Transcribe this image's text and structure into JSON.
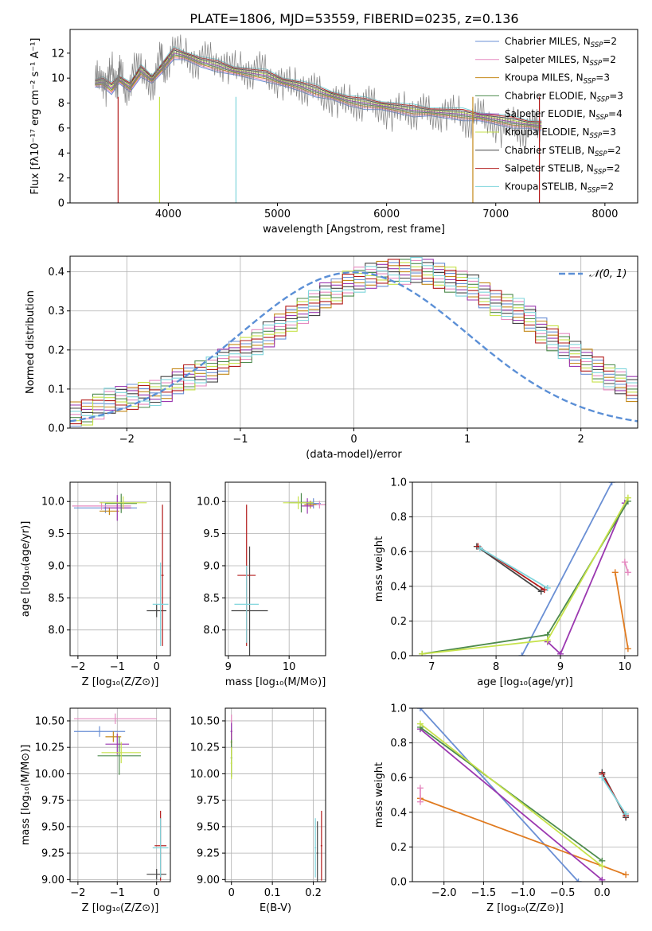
{
  "figure_title": "PLATE=1806, MJD=53559, FIBERID=0235, z=0.136",
  "colors": {
    "chabrier_miles": "#6a8fd4",
    "salpeter_miles": "#e58ac0",
    "kroupa_miles": "#c4891a",
    "chabrier_elodie": "#4e8b4e",
    "salpeter_elodie": "#9b38b0",
    "kroupa_elodie": "#c6e24a",
    "chabrier_stelib": "#444444",
    "salpeter_stelib": "#b31b1b",
    "kroupa_stelib": "#7fd5dc",
    "data": "#808080",
    "normal_curve": "#5b8fd6",
    "weights_blue": "#6a8fd4",
    "weights_orange": "#e07b20",
    "weights_purple": "#9b38b0",
    "weights_green": "#4e8b4e",
    "weights_lime": "#c6e24a",
    "weights_dark": "#444444",
    "weights_red": "#b31b1b",
    "weights_cyan": "#7fd5dc",
    "weights_pink": "#e58ac0"
  },
  "chart_data": [
    {
      "id": "spectrum",
      "type": "line",
      "xlabel": "wavelength [Angstrom, rest frame]",
      "ylabel": "Flux [fλ10⁻¹⁷ erg cm⁻² s⁻¹ A⁻¹]",
      "xlim": [
        3100,
        8300
      ],
      "ylim": [
        0,
        13.9
      ],
      "xticks": [
        4000,
        5000,
        6000,
        7000,
        8000
      ],
      "yticks": [
        0,
        2,
        4,
        6,
        8,
        10,
        12
      ],
      "grid": false,
      "legend_position": "top-right",
      "data_series": {
        "x": [
          3330,
          3380,
          3430,
          3480,
          3530,
          3560,
          3620,
          3700,
          3780,
          3860,
          3930,
          3970,
          4050,
          4150,
          4250,
          4350,
          4450,
          4550,
          4650,
          4750,
          4850,
          4950,
          5050,
          5150,
          5250,
          5350,
          5450,
          5550,
          5650,
          5750,
          5850,
          5950,
          6050,
          6150,
          6250,
          6350,
          6450,
          6550,
          6650,
          6750,
          6850,
          6950,
          7050,
          7150,
          7250,
          7350,
          7420
        ],
        "y": [
          9.8,
          10.4,
          9.1,
          10.9,
          9.5,
          10.6,
          8.7,
          11.2,
          10.2,
          9.4,
          11.8,
          10.5,
          12.4,
          11.9,
          11.2,
          11.6,
          11.3,
          10.9,
          10.8,
          10.4,
          10.8,
          10.0,
          9.6,
          9.5,
          9.2,
          9.0,
          8.4,
          8.2,
          8.1,
          7.9,
          8.0,
          7.5,
          7.1,
          7.6,
          7.2,
          7.4,
          6.9,
          7.2,
          7.3,
          6.4,
          7.1,
          6.6,
          5.8,
          6.4,
          5.7,
          6.2,
          6.0
        ]
      },
      "model_series_base": {
        "x": [
          3330,
          3400,
          3480,
          3550,
          3650,
          3750,
          3850,
          3950,
          4050,
          4150,
          4300,
          4450,
          4600,
          4750,
          4900,
          5050,
          5200,
          5350,
          5500,
          5650,
          5800,
          5950,
          6100,
          6250,
          6400,
          6550,
          6700,
          6850,
          7000,
          7150,
          7300,
          7420
        ],
        "y": [
          9.6,
          9.7,
          9.2,
          9.9,
          9.3,
          10.6,
          9.9,
          10.9,
          12.0,
          11.8,
          11.3,
          11.0,
          10.6,
          10.4,
          10.2,
          9.7,
          9.4,
          9.0,
          8.6,
          8.2,
          8.0,
          7.8,
          7.6,
          7.4,
          7.3,
          7.2,
          7.1,
          6.9,
          6.7,
          6.5,
          6.3,
          6.2
        ]
      },
      "series": [
        {
          "name": "Chabrier MILES, N",
          "sub": "SSP",
          "suffix": "=2",
          "color_key": "chabrier_miles"
        },
        {
          "name": "Salpeter MILES, N",
          "sub": "SSP",
          "suffix": "=2",
          "color_key": "salpeter_miles"
        },
        {
          "name": "Kroupa MILES, N",
          "sub": "SSP",
          "suffix": "=3",
          "color_key": "kroupa_miles"
        },
        {
          "name": "Chabrier ELODIE, N",
          "sub": "SSP",
          "suffix": "=3",
          "color_key": "chabrier_elodie"
        },
        {
          "name": "Salpeter ELODIE, N",
          "sub": "SSP",
          "suffix": "=4",
          "color_key": "salpeter_elodie"
        },
        {
          "name": "Kroupa ELODIE, N",
          "sub": "SSP",
          "suffix": "=3",
          "color_key": "kroupa_elodie"
        },
        {
          "name": "Chabrier STELIB, N",
          "sub": "SSP",
          "suffix": "=2",
          "color_key": "chabrier_stelib"
        },
        {
          "name": "Salpeter STELIB, N",
          "sub": "SSP",
          "suffix": "=2",
          "color_key": "salpeter_stelib"
        },
        {
          "name": "Kroupa STELIB, N",
          "sub": "SSP",
          "suffix": "=2",
          "color_key": "kroupa_stelib"
        }
      ]
    },
    {
      "id": "residuals",
      "type": "bar",
      "xlabel": "(data-model)/error",
      "ylabel": "Normed distribution",
      "xlim": [
        -2.5,
        2.5
      ],
      "ylim": [
        0,
        0.44
      ],
      "xticks": [
        -2,
        -1,
        0,
        1,
        2
      ],
      "yticks": [
        0.0,
        0.1,
        0.2,
        0.3,
        0.4
      ],
      "grid": true,
      "legend_position": "top-right",
      "legend_label": "𝒩(0, 1)",
      "bin_width": 0.1,
      "bin_start": -2.5,
      "base_histogram": [
        0.035,
        0.04,
        0.055,
        0.07,
        0.075,
        0.08,
        0.085,
        0.09,
        0.1,
        0.12,
        0.13,
        0.14,
        0.15,
        0.17,
        0.19,
        0.2,
        0.22,
        0.24,
        0.26,
        0.28,
        0.3,
        0.32,
        0.34,
        0.35,
        0.37,
        0.38,
        0.39,
        0.395,
        0.4,
        0.4,
        0.405,
        0.4,
        0.39,
        0.38,
        0.37,
        0.36,
        0.34,
        0.32,
        0.31,
        0.3,
        0.28,
        0.25,
        0.23,
        0.21,
        0.19,
        0.17,
        0.15,
        0.13,
        0.12,
        0.1
      ],
      "series_colors": [
        "chabrier_miles",
        "salpeter_miles",
        "kroupa_miles",
        "chabrier_elodie",
        "salpeter_elodie",
        "kroupa_elodie",
        "chabrier_stelib",
        "salpeter_stelib",
        "kroupa_stelib"
      ]
    },
    {
      "id": "age_vs_Z",
      "type": "scatter",
      "xlabel": "Z [log₁₀(Z/Z⊙)]",
      "ylabel": "age  [log₁₀(age/yr)]",
      "xlim": [
        -2.2,
        0.35
      ],
      "ylim": [
        7.6,
        10.3
      ],
      "xticks": [
        -2,
        -1,
        0
      ],
      "yticks": [
        8.0,
        8.5,
        9.0,
        9.5,
        10.0
      ],
      "grid": true,
      "points": [
        {
          "x": -1.3,
          "y": 9.9,
          "xerr": 0.8,
          "yerr": 0.08,
          "color_key": "chabrier_miles"
        },
        {
          "x": -1.4,
          "y": 9.93,
          "xerr": 0.75,
          "yerr": 0.06,
          "color_key": "salpeter_miles"
        },
        {
          "x": -1.2,
          "y": 9.85,
          "xerr": 0.25,
          "yerr": 0.06,
          "color_key": "kroupa_miles"
        },
        {
          "x": -0.9,
          "y": 9.97,
          "xerr": 0.4,
          "yerr": 0.15,
          "color_key": "chabrier_elodie"
        },
        {
          "x": -1.0,
          "y": 9.9,
          "xerr": 0.35,
          "yerr": 0.2,
          "color_key": "salpeter_elodie"
        },
        {
          "x": -0.85,
          "y": 9.98,
          "xerr": 0.6,
          "yerr": 0.1,
          "color_key": "kroupa_elodie"
        },
        {
          "x": 0.0,
          "y": 8.3,
          "xerr": 0.25,
          "yerr": 0.1,
          "color_key": "chabrier_stelib"
        },
        {
          "x": 0.15,
          "y": 8.85,
          "xerr": 0.03,
          "yerr": 1.1,
          "color_key": "salpeter_stelib"
        },
        {
          "x": 0.1,
          "y": 8.4,
          "xerr": 0.2,
          "yerr": 0.65,
          "color_key": "kroupa_stelib"
        }
      ]
    },
    {
      "id": "age_vs_mass",
      "type": "scatter",
      "xlabel": "mass [log₁₀(M/M⊙)]",
      "ylabel": "",
      "xlim": [
        8.95,
        10.6
      ],
      "ylim": [
        7.6,
        10.3
      ],
      "xticks": [
        9,
        10
      ],
      "yticks": [
        8.0,
        8.5,
        9.0,
        9.5,
        10.0
      ],
      "grid": true,
      "points": [
        {
          "x": 10.4,
          "y": 9.97,
          "xerr": 0.12,
          "yerr": 0.08,
          "color_key": "chabrier_miles"
        },
        {
          "x": 10.5,
          "y": 9.95,
          "xerr": 0.1,
          "yerr": 0.06,
          "color_key": "salpeter_miles"
        },
        {
          "x": 10.35,
          "y": 9.95,
          "xerr": 0.1,
          "yerr": 0.06,
          "color_key": "kroupa_miles"
        },
        {
          "x": 10.2,
          "y": 9.98,
          "xerr": 0.2,
          "yerr": 0.15,
          "color_key": "chabrier_elodie"
        },
        {
          "x": 10.3,
          "y": 9.93,
          "xerr": 0.1,
          "yerr": 0.12,
          "color_key": "salpeter_elodie"
        },
        {
          "x": 10.15,
          "y": 9.98,
          "xerr": 0.25,
          "yerr": 0.1,
          "color_key": "kroupa_elodie"
        },
        {
          "x": 9.35,
          "y": 8.3,
          "xerr": 0.3,
          "yerr": 1.0,
          "color_key": "chabrier_stelib"
        },
        {
          "x": 9.3,
          "y": 8.85,
          "xerr": 0.15,
          "yerr": 1.1,
          "color_key": "salpeter_stelib"
        },
        {
          "x": 9.3,
          "y": 8.4,
          "xerr": 0.2,
          "yerr": 0.6,
          "color_key": "kroupa_stelib"
        }
      ]
    },
    {
      "id": "weight_vs_age",
      "type": "line",
      "xlabel": "age  [log₁₀(age/yr)]",
      "ylabel": "mass weight",
      "xlim": [
        6.7,
        10.2
      ],
      "ylim": [
        0.0,
        1.0
      ],
      "xticks": [
        7,
        8,
        9,
        10
      ],
      "yticks": [
        0.0,
        0.2,
        0.4,
        0.6,
        0.8,
        1.0
      ],
      "grid": true,
      "lines": [
        {
          "x": [
            8.4,
            9.8
          ],
          "y": [
            0.0,
            1.0
          ],
          "color_key": "weights_blue"
        },
        {
          "x": [
            9.85,
            10.05
          ],
          "y": [
            0.48,
            0.04
          ],
          "color_key": "weights_orange"
        },
        {
          "x": [
            8.8,
            9.0,
            10.0
          ],
          "y": [
            0.08,
            0.01,
            0.88
          ],
          "color_key": "weights_purple"
        },
        {
          "x": [
            6.85,
            8.8,
            10.05
          ],
          "y": [
            0.01,
            0.12,
            0.89
          ],
          "color_key": "weights_green"
        },
        {
          "x": [
            6.85,
            8.8,
            10.05
          ],
          "y": [
            0.01,
            0.09,
            0.91
          ],
          "color_key": "weights_lime"
        },
        {
          "x": [
            7.7,
            8.7
          ],
          "y": [
            0.63,
            0.37
          ],
          "color_key": "weights_dark"
        },
        {
          "x": [
            7.72,
            8.75
          ],
          "y": [
            0.63,
            0.38
          ],
          "color_key": "weights_red"
        },
        {
          "x": [
            7.75,
            8.8
          ],
          "y": [
            0.62,
            0.39
          ],
          "color_key": "weights_cyan"
        },
        {
          "x": [
            10.0,
            10.05
          ],
          "y": [
            0.54,
            0.48
          ],
          "color_key": "weights_pink"
        }
      ]
    },
    {
      "id": "mass_vs_Z",
      "type": "scatter",
      "xlabel": "Z [log₁₀(Z/Z⊙)]",
      "ylabel": "mass [log₁₀(M/M⊙)]",
      "xlim": [
        -2.2,
        0.35
      ],
      "ylim": [
        8.98,
        10.62
      ],
      "xticks": [
        -2,
        -1,
        0
      ],
      "yticks": [
        9.0,
        9.25,
        9.5,
        9.75,
        10.0,
        10.25,
        10.5
      ],
      "grid": true,
      "points": [
        {
          "x": -1.45,
          "y": 10.4,
          "xerr": 0.65,
          "yerr": 0.05,
          "color_key": "chabrier_miles"
        },
        {
          "x": -1.05,
          "y": 10.52,
          "xerr": 1.05,
          "yerr": 0.05,
          "color_key": "salpeter_miles"
        },
        {
          "x": -1.1,
          "y": 10.35,
          "xerr": 0.2,
          "yerr": 0.05,
          "color_key": "kroupa_miles"
        },
        {
          "x": -0.95,
          "y": 10.17,
          "xerr": 0.55,
          "yerr": 0.18,
          "color_key": "chabrier_elodie"
        },
        {
          "x": -1.0,
          "y": 10.28,
          "xerr": 0.3,
          "yerr": 0.1,
          "color_key": "salpeter_elodie"
        },
        {
          "x": -0.9,
          "y": 10.2,
          "xerr": 0.5,
          "yerr": 0.1,
          "color_key": "kroupa_elodie"
        },
        {
          "x": 0.0,
          "y": 9.05,
          "xerr": 0.25,
          "yerr": 0.05,
          "color_key": "chabrier_stelib"
        },
        {
          "x": 0.1,
          "y": 9.32,
          "xerr": 0.15,
          "yerr": 0.33,
          "color_key": "salpeter_stelib"
        },
        {
          "x": 0.1,
          "y": 9.3,
          "xerr": 0.2,
          "yerr": 0.28,
          "color_key": "kroupa_stelib"
        }
      ]
    },
    {
      "id": "mass_vs_ebv",
      "type": "scatter",
      "xlabel": "E(B-V)",
      "ylabel": "",
      "xlim": [
        -0.015,
        0.23
      ],
      "ylim": [
        8.98,
        10.62
      ],
      "xticks": [
        0.0,
        0.1,
        0.2
      ],
      "yticks": [
        9.0,
        9.25,
        9.5,
        9.75,
        10.0,
        10.25,
        10.5
      ],
      "grid": true,
      "points": [
        {
          "x": 0.0,
          "y": 10.4,
          "xerr": 0.002,
          "yerr": 0.1,
          "color_key": "chabrier_miles"
        },
        {
          "x": 0.0,
          "y": 10.5,
          "xerr": 0.002,
          "yerr": 0.06,
          "color_key": "salpeter_miles"
        },
        {
          "x": 0.0,
          "y": 10.3,
          "xerr": 0.002,
          "yerr": 0.12,
          "color_key": "kroupa_miles"
        },
        {
          "x": 0.0,
          "y": 10.15,
          "xerr": 0.002,
          "yerr": 0.18,
          "color_key": "chabrier_elodie"
        },
        {
          "x": 0.0,
          "y": 10.4,
          "xerr": 0.002,
          "yerr": 0.08,
          "color_key": "salpeter_elodie"
        },
        {
          "x": 0.0,
          "y": 10.1,
          "xerr": 0.002,
          "yerr": 0.15,
          "color_key": "kroupa_elodie"
        },
        {
          "x": 0.21,
          "y": 9.25,
          "xerr": 0.002,
          "yerr": 0.3,
          "color_key": "chabrier_stelib"
        },
        {
          "x": 0.22,
          "y": 9.32,
          "xerr": 0.002,
          "yerr": 0.33,
          "color_key": "salpeter_stelib"
        },
        {
          "x": 0.205,
          "y": 9.3,
          "xerr": 0.002,
          "yerr": 0.28,
          "color_key": "kroupa_stelib"
        }
      ]
    },
    {
      "id": "weight_vs_Z",
      "type": "line",
      "xlabel": "Z [log₁₀(Z/Z⊙)]",
      "ylabel": "mass weight",
      "xlim": [
        -2.4,
        0.45
      ],
      "ylim": [
        0.0,
        1.0
      ],
      "xticks": [
        -2.0,
        -1.5,
        -1.0,
        -0.5,
        0.0
      ],
      "yticks": [
        0.0,
        0.2,
        0.4,
        0.6,
        0.8,
        1.0
      ],
      "grid": true,
      "lines": [
        {
          "x": [
            -2.3,
            -0.3
          ],
          "y": [
            1.0,
            0.0
          ],
          "color_key": "weights_blue"
        },
        {
          "x": [
            -2.3,
            0.3
          ],
          "y": [
            0.48,
            0.04
          ],
          "color_key": "weights_orange"
        },
        {
          "x": [
            -2.3,
            0.0
          ],
          "y": [
            0.88,
            0.01
          ],
          "color_key": "weights_purple"
        },
        {
          "x": [
            -2.3,
            0.0
          ],
          "y": [
            0.89,
            0.12
          ],
          "color_key": "weights_green"
        },
        {
          "x": [
            -2.3,
            0.0
          ],
          "y": [
            0.91,
            0.09
          ],
          "color_key": "weights_lime"
        },
        {
          "x": [
            0.0,
            0.3
          ],
          "y": [
            0.63,
            0.37
          ],
          "color_key": "weights_dark"
        },
        {
          "x": [
            0.0,
            0.3
          ],
          "y": [
            0.62,
            0.38
          ],
          "color_key": "weights_red"
        },
        {
          "x": [
            0.0,
            0.3
          ],
          "y": [
            0.6,
            0.39
          ],
          "color_key": "weights_cyan"
        },
        {
          "x": [
            -2.3,
            -2.3
          ],
          "y": [
            0.54,
            0.46
          ],
          "color_key": "weights_pink"
        }
      ]
    }
  ]
}
